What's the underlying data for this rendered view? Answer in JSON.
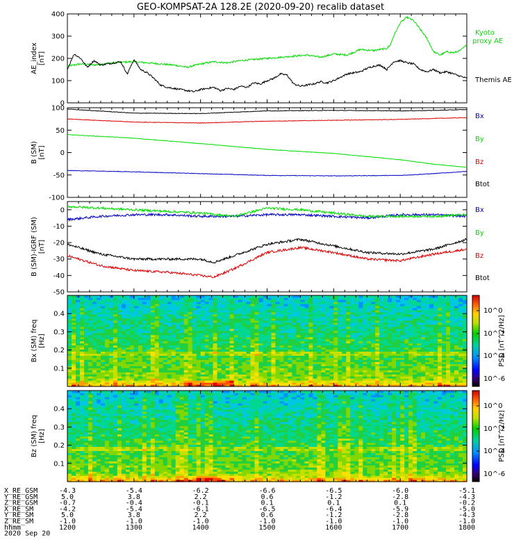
{
  "title": "GEO-KOMPSAT-2A 128.2E (2020-09-20) recalib dataset",
  "colors": {
    "black": "#000000",
    "red": "#e00000",
    "green": "#00dd00",
    "blue": "#0000c8"
  },
  "chart_data": [
    {
      "type": "line",
      "panel": "ae",
      "ylabel": "AE_index [nT]",
      "ylim": [
        0,
        400
      ],
      "yticks": [
        0,
        100,
        200,
        300,
        400
      ],
      "xlim": [
        12,
        18
      ],
      "series": [
        {
          "name": "Kyoto proxy AE",
          "color": "#00dd00",
          "x": [
            12.0,
            12.2,
            12.4,
            12.6,
            12.8,
            13.0,
            13.2,
            13.4,
            13.6,
            13.8,
            14.0,
            14.2,
            14.4,
            14.6,
            14.8,
            15.0,
            15.2,
            15.4,
            15.6,
            15.8,
            16.0,
            16.2,
            16.4,
            16.6,
            16.8,
            16.85,
            16.9,
            17.0,
            17.1,
            17.2,
            17.3,
            17.4,
            17.5,
            17.6,
            17.7,
            17.8,
            17.9,
            18.0
          ],
          "y": [
            165,
            175,
            170,
            178,
            183,
            185,
            180,
            175,
            170,
            160,
            175,
            185,
            180,
            190,
            195,
            200,
            205,
            210,
            215,
            205,
            220,
            215,
            240,
            235,
            245,
            260,
            300,
            360,
            385,
            370,
            330,
            290,
            230,
            215,
            230,
            225,
            235,
            260
          ]
        },
        {
          "name": "Themis AE",
          "color": "#000000",
          "x": [
            12.0,
            12.1,
            12.2,
            12.3,
            12.4,
            12.5,
            12.6,
            12.7,
            12.8,
            12.9,
            13.0,
            13.1,
            13.2,
            13.3,
            13.4,
            13.5,
            13.6,
            13.7,
            13.8,
            13.9,
            14.0,
            14.1,
            14.2,
            14.3,
            14.4,
            14.5,
            14.6,
            14.7,
            14.8,
            14.9,
            15.0,
            15.1,
            15.2,
            15.3,
            15.4,
            15.5,
            15.6,
            15.7,
            15.8,
            15.9,
            16.0,
            16.1,
            16.2,
            16.3,
            16.4,
            16.5,
            16.6,
            16.7,
            16.8,
            16.9,
            17.0,
            17.1,
            17.2,
            17.3,
            17.4,
            17.5,
            17.6,
            17.7,
            17.8,
            17.9,
            18.0
          ],
          "y": [
            150,
            220,
            200,
            160,
            190,
            170,
            175,
            180,
            185,
            130,
            195,
            150,
            135,
            110,
            80,
            70,
            65,
            60,
            55,
            50,
            60,
            65,
            70,
            55,
            65,
            60,
            75,
            70,
            90,
            85,
            100,
            110,
            130,
            125,
            85,
            75,
            80,
            85,
            95,
            90,
            100,
            115,
            130,
            135,
            140,
            155,
            165,
            170,
            150,
            185,
            190,
            180,
            175,
            150,
            140,
            150,
            135,
            140,
            130,
            120,
            110
          ]
        }
      ]
    },
    {
      "type": "line",
      "panel": "bsm",
      "ylabel": "B (SM) [nT]",
      "ylim": [
        -100,
        100
      ],
      "yticks": [
        -100,
        -50,
        0,
        50,
        100
      ],
      "xlim": [
        12,
        18
      ],
      "series": [
        {
          "name": "Bx",
          "color": "#0000c8",
          "x": [
            12,
            13,
            14,
            15,
            16,
            17,
            17.5,
            18
          ],
          "y": [
            -40,
            -43,
            -47,
            -51,
            -52,
            -51,
            -47,
            -42
          ]
        },
        {
          "name": "By",
          "color": "#00dd00",
          "x": [
            12,
            13,
            14,
            15,
            16,
            17,
            17.5,
            18
          ],
          "y": [
            40,
            32,
            20,
            7,
            -2,
            -16,
            -26,
            -33
          ]
        },
        {
          "name": "Bz",
          "color": "#e00000",
          "x": [
            12,
            13,
            14,
            15,
            16,
            17,
            17.5,
            18
          ],
          "y": [
            75,
            68,
            66,
            70,
            72,
            74,
            76,
            78
          ]
        },
        {
          "name": "Btot",
          "color": "#000000",
          "x": [
            12,
            13,
            14,
            15,
            16,
            17,
            17.5,
            18
          ],
          "y": [
            97,
            88,
            87,
            93,
            94,
            93,
            94,
            96
          ]
        }
      ]
    },
    {
      "type": "line",
      "panel": "bdiff",
      "ylabel": "B (SM)-IGRF (SM) [nT]",
      "ylim": [
        -50,
        5
      ],
      "yticks": [
        -50,
        -40,
        -30,
        -20,
        -10,
        0
      ],
      "xlim": [
        12,
        18
      ],
      "series": [
        {
          "name": "Bx",
          "color": "#0000c8",
          "x": [
            12,
            12.5,
            13,
            13.5,
            14,
            14.5,
            15,
            15.5,
            16,
            16.5,
            17,
            17.5,
            18
          ],
          "y": [
            -6,
            -4,
            -3,
            -3,
            -4,
            -4,
            -3,
            -3,
            -4,
            -5,
            -3,
            -3,
            -4
          ]
        },
        {
          "name": "By",
          "color": "#00dd00",
          "x": [
            12,
            12.5,
            13,
            13.5,
            14,
            14.5,
            15,
            15.5,
            16,
            16.5,
            17,
            17.5,
            18
          ],
          "y": [
            2,
            1,
            0,
            -1,
            -2,
            -4,
            1,
            0,
            -2,
            -4,
            -4,
            -4,
            -3
          ]
        },
        {
          "name": "Bz",
          "color": "#e00000",
          "x": [
            12,
            12.5,
            13,
            13.5,
            14,
            14.2,
            14.5,
            15,
            15.5,
            16,
            16.5,
            17,
            17.5,
            18
          ],
          "y": [
            -28,
            -34,
            -37,
            -38,
            -40,
            -41,
            -36,
            -26,
            -23,
            -26,
            -30,
            -31,
            -27,
            -24
          ]
        },
        {
          "name": "Btot",
          "color": "#000000",
          "x": [
            12,
            12.5,
            13,
            13.5,
            14,
            14.2,
            14.5,
            15,
            15.5,
            16,
            16.5,
            17,
            17.5,
            18
          ],
          "y": [
            -21,
            -27,
            -30,
            -30,
            -30,
            -32,
            -28,
            -21,
            -18,
            -22,
            -26,
            -27,
            -24,
            -18
          ]
        }
      ]
    },
    {
      "type": "heatmap",
      "panel": "spec_bx",
      "ylabel": "Bx (SM) freq [Hz]",
      "ylim": [
        0,
        0.5
      ],
      "yticks": [
        0.1,
        0.2,
        0.3,
        0.4
      ],
      "xlim": [
        12,
        18
      ],
      "colorbar_label": "PSD [nT^2/Hz]",
      "colorbar_ticks": [
        "10^0",
        "10^-2",
        "10^-4",
        "10^-6"
      ]
    },
    {
      "type": "heatmap",
      "panel": "spec_bz",
      "ylabel": "Bz (SM) freq [Hz]",
      "ylim": [
        0,
        0.5
      ],
      "yticks": [
        0.1,
        0.2,
        0.3,
        0.4
      ],
      "xlim": [
        12,
        18
      ],
      "colorbar_label": "PSD [nT^2/Hz]",
      "colorbar_ticks": [
        "10^0",
        "10^-2",
        "10^-4",
        "10^-6"
      ]
    }
  ],
  "ephemeris": {
    "rows": [
      {
        "label": "X_RE_GSM",
        "values": [
          "-4.3",
          "-5.4",
          "-6.2",
          "-6.6",
          "-6.5",
          "-6.0",
          "-5.1"
        ]
      },
      {
        "label": "Y_RE_GSM",
        "values": [
          "5.0",
          "3.8",
          "2.2",
          "0.6",
          "-1.2",
          "-2.8",
          "-4.3"
        ]
      },
      {
        "label": "Z_RE_GSM",
        "values": [
          "-0.7",
          "-0.4",
          "-0.1",
          "0.1",
          "0.1",
          "0.1",
          "-0.2"
        ]
      },
      {
        "label": "X_RE_SM",
        "values": [
          "-4.2",
          "-5.4",
          "-6.1",
          "-6.5",
          "-6.4",
          "-5.9",
          "-5.0"
        ]
      },
      {
        "label": "Y_RE_SM",
        "values": [
          "5.0",
          "3.8",
          "2.2",
          "0.6",
          "-1.2",
          "-2.8",
          "-4.3"
        ]
      },
      {
        "label": "Z_RE_SM",
        "values": [
          "-1.0",
          "-1.0",
          "-1.0",
          "-1.0",
          "-1.0",
          "-1.0",
          "-1.0"
        ]
      },
      {
        "label": "hhmm",
        "values": [
          "1200",
          "1300",
          "1400",
          "1500",
          "1600",
          "1700",
          "1800"
        ]
      }
    ],
    "date": "2020 Sep 20"
  }
}
